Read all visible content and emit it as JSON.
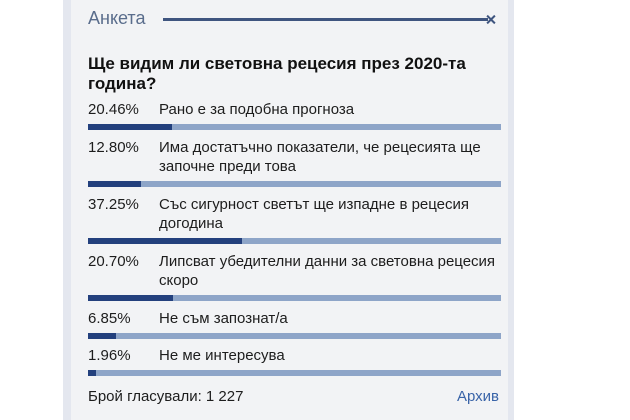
{
  "poll": {
    "title": "Анкета",
    "question": "Ще видим ли световна рецесия през 2020-та година?",
    "options": [
      {
        "percent": "20.46%",
        "value": 20.46,
        "label": "Рано е за подобна прогноза"
      },
      {
        "percent": "12.80%",
        "value": 12.8,
        "label": "Има достатъчно показатели, че рецесията ще започне преди това"
      },
      {
        "percent": "37.25%",
        "value": 37.25,
        "label": "Със сигурност светът ще изпадне в рецесия догодина"
      },
      {
        "percent": "20.70%",
        "value": 20.7,
        "label": "Липсват убедителни данни за световна рецесия скоро"
      },
      {
        "percent": "6.85%",
        "value": 6.85,
        "label": "Не съм запознат/а"
      },
      {
        "percent": "1.96%",
        "value": 1.96,
        "label": "Не ме интересува"
      }
    ],
    "votes_label": "Брой гласували: 1 227",
    "archive_link": "Архив"
  },
  "colors": {
    "bar_fill": "#23407d",
    "bar_track": "#8ea5c8",
    "header_rule": "#3f557f",
    "title": "#5a6d8c",
    "link": "#3a64a8"
  },
  "icons": {
    "header_corner": "close-icon"
  }
}
